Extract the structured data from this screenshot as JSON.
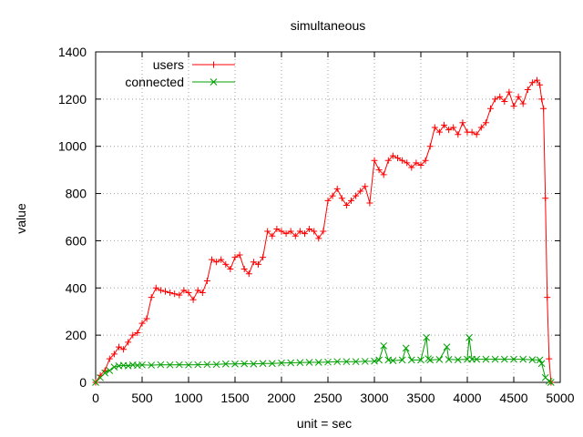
{
  "chart_data": {
    "type": "line",
    "title": "simultaneous",
    "xlabel": "unit = sec",
    "ylabel": "value",
    "xlim": [
      0,
      5000
    ],
    "ylim": [
      0,
      1400
    ],
    "x_ticks": [
      0,
      500,
      1000,
      1500,
      2000,
      2500,
      3000,
      3500,
      4000,
      4500,
      5000
    ],
    "y_ticks": [
      0,
      200,
      400,
      600,
      800,
      1000,
      1200,
      1400
    ],
    "x_tick_labels": [
      "0",
      "500",
      "1000",
      "1500",
      "2000",
      "2500",
      "3000",
      "3500",
      "4000",
      "4500",
      "5000"
    ],
    "y_tick_labels": [
      "0",
      "200",
      "400",
      "600",
      "800",
      "1000",
      "1200",
      "1400"
    ],
    "grid": true,
    "legend_position": "top-left",
    "series": [
      {
        "name": "users",
        "color": "#ff0000",
        "marker": "plus",
        "x": [
          0,
          50,
          100,
          150,
          200,
          250,
          300,
          350,
          400,
          450,
          500,
          550,
          600,
          650,
          700,
          750,
          800,
          850,
          900,
          950,
          1000,
          1050,
          1100,
          1150,
          1200,
          1250,
          1300,
          1350,
          1400,
          1450,
          1500,
          1550,
          1600,
          1650,
          1700,
          1750,
          1800,
          1850,
          1900,
          1950,
          2000,
          2050,
          2100,
          2150,
          2200,
          2250,
          2300,
          2350,
          2400,
          2450,
          2500,
          2550,
          2600,
          2650,
          2700,
          2750,
          2800,
          2850,
          2900,
          2950,
          3000,
          3050,
          3100,
          3150,
          3200,
          3250,
          3300,
          3350,
          3400,
          3450,
          3500,
          3550,
          3600,
          3650,
          3700,
          3750,
          3800,
          3850,
          3900,
          3950,
          4000,
          4050,
          4100,
          4150,
          4200,
          4250,
          4300,
          4350,
          4400,
          4450,
          4500,
          4550,
          4600,
          4650,
          4700,
          4750,
          4780,
          4800,
          4820,
          4840,
          4860,
          4880,
          4900
        ],
        "y": [
          0,
          30,
          50,
          100,
          120,
          150,
          140,
          170,
          200,
          210,
          250,
          270,
          360,
          400,
          390,
          385,
          380,
          375,
          370,
          390,
          380,
          350,
          390,
          380,
          430,
          520,
          510,
          520,
          500,
          480,
          530,
          540,
          480,
          460,
          510,
          500,
          530,
          640,
          620,
          650,
          640,
          630,
          640,
          620,
          640,
          630,
          650,
          640,
          610,
          640,
          770,
          790,
          820,
          780,
          750,
          770,
          790,
          810,
          830,
          760,
          940,
          900,
          880,
          940,
          960,
          950,
          940,
          930,
          910,
          930,
          920,
          940,
          1000,
          1080,
          1060,
          1090,
          1070,
          1080,
          1050,
          1100,
          1060,
          1060,
          1050,
          1080,
          1100,
          1160,
          1200,
          1210,
          1190,
          1230,
          1170,
          1210,
          1180,
          1240,
          1270,
          1280,
          1260,
          1200,
          1160,
          780,
          360,
          100,
          0
        ]
      },
      {
        "name": "connected",
        "color": "#00a000",
        "marker": "cross",
        "x": [
          0,
          50,
          100,
          150,
          200,
          250,
          300,
          350,
          400,
          450,
          500,
          600,
          700,
          800,
          900,
          1000,
          1100,
          1200,
          1300,
          1400,
          1500,
          1600,
          1700,
          1800,
          1900,
          2000,
          2100,
          2200,
          2300,
          2400,
          2500,
          2600,
          2700,
          2800,
          2900,
          3000,
          3050,
          3100,
          3150,
          3200,
          3300,
          3340,
          3400,
          3500,
          3560,
          3580,
          3600,
          3700,
          3780,
          3800,
          3900,
          4000,
          4020,
          4050,
          4100,
          4200,
          4300,
          4400,
          4500,
          4600,
          4700,
          4780,
          4800,
          4840,
          4880,
          4900
        ],
        "y": [
          0,
          20,
          40,
          50,
          65,
          70,
          72,
          70,
          74,
          72,
          74,
          73,
          75,
          74,
          75,
          74,
          75,
          76,
          76,
          78,
          78,
          79,
          78,
          80,
          80,
          82,
          83,
          84,
          85,
          85,
          86,
          88,
          88,
          88,
          89,
          90,
          95,
          155,
          95,
          92,
          95,
          145,
          95,
          95,
          190,
          100,
          95,
          97,
          150,
          97,
          96,
          98,
          190,
          98,
          98,
          98,
          98,
          98,
          98,
          98,
          96,
          95,
          80,
          20,
          5,
          0
        ]
      }
    ]
  }
}
